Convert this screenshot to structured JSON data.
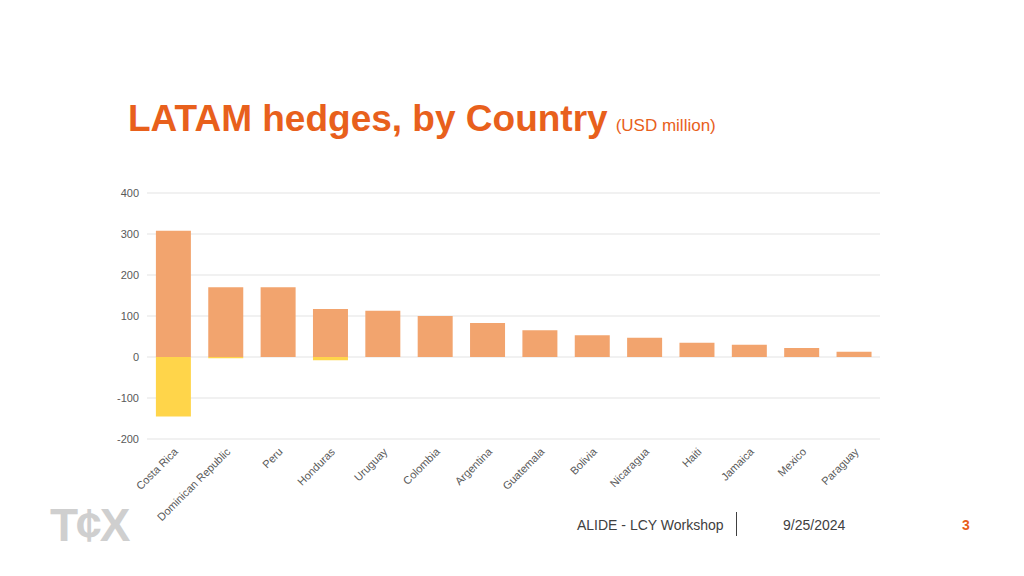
{
  "chart_data": {
    "type": "bar",
    "title": "LATAM hedges, by Country",
    "subtitle": "(USD million)",
    "categories": [
      "Costa Rica",
      "Dominican Republic",
      "Peru",
      "Honduras",
      "Uruguay",
      "Colombia",
      "Argentina",
      "Guatemala",
      "Bolivia",
      "Nicaragua",
      "Haiti",
      "Jamaica",
      "Mexico",
      "Paraguay"
    ],
    "series": [
      {
        "color": "#F2A46E",
        "values": [
          308,
          170,
          170,
          117,
          113,
          100,
          83,
          65,
          53,
          47,
          35,
          30,
          22,
          13
        ]
      },
      {
        "color": "#FFD54A",
        "values": [
          -145,
          -3,
          null,
          -8,
          null,
          null,
          null,
          null,
          null,
          null,
          null,
          null,
          null,
          null
        ]
      }
    ],
    "stacked": true,
    "ylim": [
      -200,
      400
    ],
    "yticks": [
      -200,
      -100,
      0,
      100,
      200,
      300,
      400
    ],
    "grid": true
  },
  "footer": {
    "event": "ALIDE - LCY Workshop",
    "date": "9/25/2024",
    "page": 3,
    "logo": "T¢X"
  }
}
